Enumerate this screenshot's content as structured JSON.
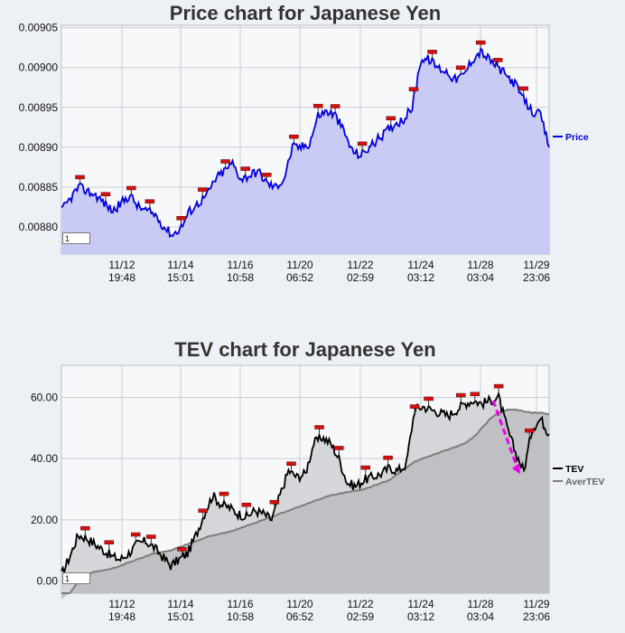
{
  "chart_data": [
    {
      "type": "area",
      "title": "Price chart for Japanese Yen",
      "y_ticks": [
        "0.00905",
        "0.00900",
        "0.00895",
        "0.00890",
        "0.00885",
        "0.00880"
      ],
      "ylim": [
        0.008766,
        0.009053
      ],
      "x_ticks": [
        {
          "date": "11/12",
          "time": "19:48"
        },
        {
          "date": "11/14",
          "time": "15:01"
        },
        {
          "date": "11/16",
          "time": "10:58"
        },
        {
          "date": "11/20",
          "time": "06:52"
        },
        {
          "date": "11/22",
          "time": "02:59"
        },
        {
          "date": "11/24",
          "time": "03:12"
        },
        {
          "date": "11/28",
          "time": "03:04"
        },
        {
          "date": "11/29",
          "time": "23:06"
        }
      ],
      "series": [
        {
          "name": "Price",
          "color": "#0000dd",
          "fill": "#c9cbf5",
          "values": [
            0.00882,
            0.008835,
            0.00885,
            0.008845,
            0.00884,
            0.00883,
            0.00882,
            0.00883,
            0.00884,
            0.008825,
            0.00882,
            0.008815,
            0.0088,
            0.00879,
            0.0088,
            0.00882,
            0.00883,
            0.00884,
            0.00886,
            0.00887,
            0.00888,
            0.00886,
            0.008865,
            0.00887,
            0.008855,
            0.00885,
            0.00886,
            0.0089,
            0.0089,
            0.008905,
            0.00894,
            0.008945,
            0.00894,
            0.00892,
            0.008895,
            0.00889,
            0.0089,
            0.00891,
            0.00892,
            0.00893,
            0.008935,
            0.00895,
            0.00901,
            0.00901,
            0.009,
            0.008995,
            0.008985,
            0.00899,
            0.00901,
            0.00902,
            0.00901,
            0.009,
            0.00899,
            0.00898,
            0.00896,
            0.008945,
            0.00894,
            0.0089
          ]
        }
      ],
      "markers": [
        "11/12 19:48",
        "11/13",
        "11/13 12:00",
        "11/14",
        "11/14 15:01",
        "11/15",
        "11/16",
        "11/17",
        "11/17 12:00",
        "11/18",
        "11/20",
        "11/21",
        "11/22",
        "11/23",
        "11/24",
        "11/25",
        "11/26",
        "11/27",
        "11/28",
        "11/29"
      ],
      "legend": {
        "entries": [
          "Price"
        ],
        "position": "right"
      },
      "grid": true,
      "page_box": "1"
    },
    {
      "type": "area",
      "title": "TEV chart for Japanese Yen",
      "y_ticks": [
        "60.00",
        "40.00",
        "20.00",
        "0.00"
      ],
      "ylim": [
        -4,
        70.5
      ],
      "x_ticks": [
        {
          "date": "11/12",
          "time": "19:48"
        },
        {
          "date": "11/14",
          "time": "15:01"
        },
        {
          "date": "11/16",
          "time": "10:58"
        },
        {
          "date": "11/20",
          "time": "06:52"
        },
        {
          "date": "11/22",
          "time": "02:59"
        },
        {
          "date": "11/24",
          "time": "03:12"
        },
        {
          "date": "11/28",
          "time": "03:04"
        },
        {
          "date": "11/29",
          "time": "23:06"
        }
      ],
      "series": [
        {
          "name": "TEV",
          "color": "#000000",
          "fill": "#d4d6d9",
          "values": [
            2,
            8,
            15,
            14,
            12,
            10,
            8,
            7,
            9,
            12,
            13,
            11,
            8,
            5,
            7,
            9,
            15,
            22,
            28,
            25,
            24,
            22,
            21,
            23,
            22,
            20,
            28,
            36,
            34,
            35,
            45,
            47,
            45,
            40,
            32,
            31,
            33,
            34,
            35,
            37,
            36,
            38,
            56,
            57,
            56,
            55,
            54,
            56,
            58,
            59,
            58,
            59,
            60,
            50,
            42,
            36,
            50,
            53,
            48
          ]
        },
        {
          "name": "AverTEV",
          "color": "#7d7d7d",
          "fill": "#bcbec1",
          "values": [
            -6,
            -4,
            0,
            2,
            3,
            3.5,
            4,
            5,
            6,
            7,
            8,
            9,
            9.5,
            10,
            11,
            12,
            13,
            14,
            15,
            15.5,
            16,
            17,
            18,
            19,
            20,
            21,
            22,
            23,
            24,
            25,
            26,
            27,
            28,
            28.5,
            29,
            29.5,
            30,
            31,
            32,
            33,
            35,
            37,
            39,
            40,
            41,
            42,
            43,
            44,
            45,
            47,
            50,
            53,
            55,
            56,
            56,
            55.5,
            55,
            55,
            54.5
          ]
        }
      ],
      "markers": [
        "11/12 19:48",
        "11/13",
        "11/13 12:00",
        "11/14",
        "11/14 15:01",
        "11/15",
        "11/16",
        "11/17",
        "11/17 12:00",
        "11/18",
        "11/20",
        "11/21",
        "11/22",
        "11/23",
        "11/24",
        "11/25",
        "11/26",
        "11/27",
        "11/28",
        "11/29"
      ],
      "legend": {
        "entries": [
          "TEV",
          "AverTEV"
        ],
        "position": "right"
      },
      "grid": true,
      "page_box": "1",
      "arrow_color": "#ee00ee"
    }
  ]
}
